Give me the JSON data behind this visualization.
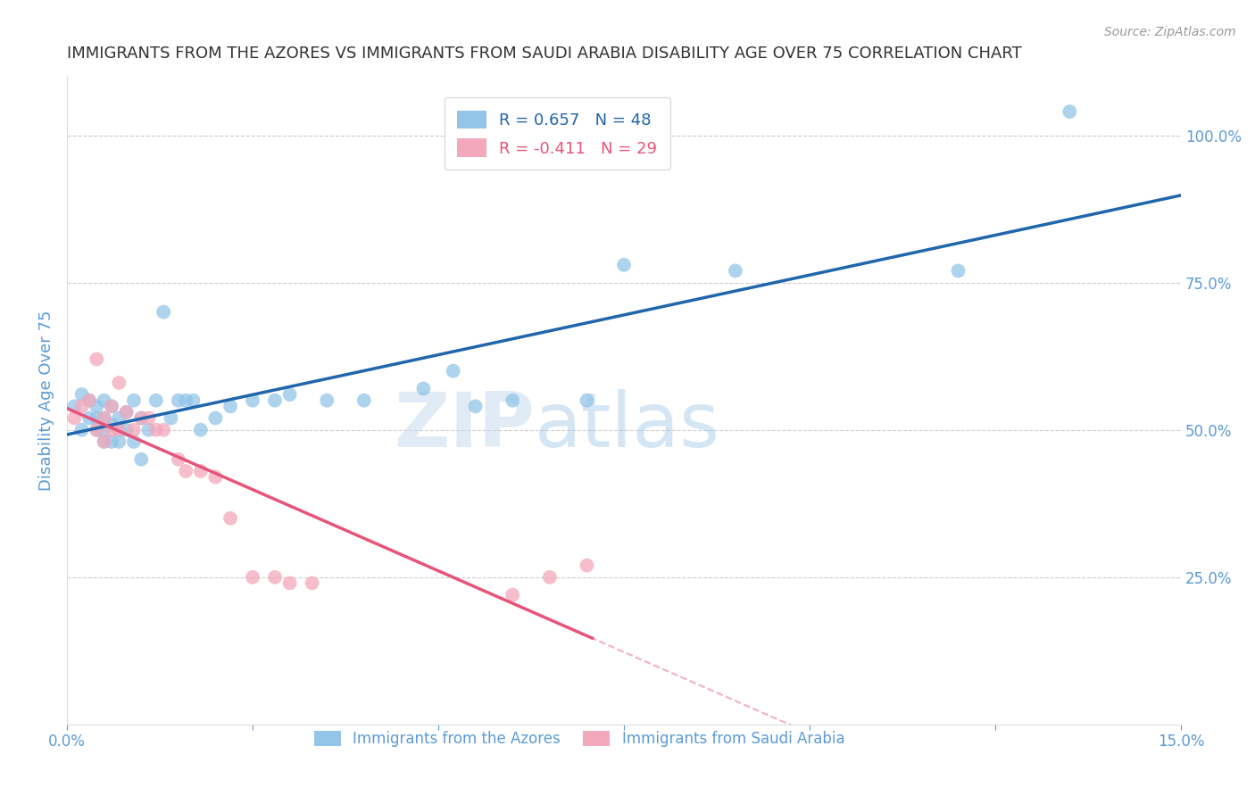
{
  "title": "IMMIGRANTS FROM THE AZORES VS IMMIGRANTS FROM SAUDI ARABIA DISABILITY AGE OVER 75 CORRELATION CHART",
  "source": "Source: ZipAtlas.com",
  "ylabel": "Disability Age Over 75",
  "xlim": [
    0.0,
    0.15
  ],
  "ylim": [
    0.0,
    1.1
  ],
  "xticks": [
    0.0,
    0.025,
    0.05,
    0.075,
    0.1,
    0.125,
    0.15
  ],
  "xtick_labels": [
    "0.0%",
    "",
    "",
    "",
    "",
    "",
    "15.0%"
  ],
  "yticks": [
    0.25,
    0.5,
    0.75,
    1.0
  ],
  "ytick_labels": [
    "25.0%",
    "50.0%",
    "75.0%",
    "100.0%"
  ],
  "r_azores": 0.657,
  "n_azores": 48,
  "r_saudi": -0.411,
  "n_saudi": 29,
  "color_azores": "#92C5E8",
  "color_saudi": "#F4A8BB",
  "line_color_azores": "#2166AC",
  "line_color_saudi": "#E8537A",
  "background_color": "#FFFFFF",
  "grid_color": "#CCCCCC",
  "title_color": "#333333",
  "axis_label_color": "#5B9BD5",
  "tick_color": "#5B9BD5",
  "azores_x": [
    0.001,
    0.002,
    0.002,
    0.003,
    0.003,
    0.004,
    0.004,
    0.004,
    0.005,
    0.005,
    0.005,
    0.005,
    0.006,
    0.006,
    0.006,
    0.007,
    0.007,
    0.007,
    0.008,
    0.008,
    0.009,
    0.009,
    0.01,
    0.01,
    0.011,
    0.012,
    0.013,
    0.014,
    0.015,
    0.016,
    0.017,
    0.018,
    0.02,
    0.022,
    0.025,
    0.028,
    0.03,
    0.035,
    0.04,
    0.048,
    0.052,
    0.055,
    0.06,
    0.07,
    0.075,
    0.09,
    0.12,
    0.135
  ],
  "azores_y": [
    0.54,
    0.56,
    0.5,
    0.52,
    0.55,
    0.5,
    0.52,
    0.54,
    0.48,
    0.5,
    0.52,
    0.55,
    0.48,
    0.51,
    0.54,
    0.5,
    0.52,
    0.48,
    0.5,
    0.53,
    0.48,
    0.55,
    0.52,
    0.45,
    0.5,
    0.55,
    0.7,
    0.52,
    0.55,
    0.55,
    0.55,
    0.5,
    0.52,
    0.54,
    0.55,
    0.55,
    0.56,
    0.55,
    0.55,
    0.57,
    0.6,
    0.54,
    0.55,
    0.55,
    0.78,
    0.77,
    0.77,
    1.04
  ],
  "saudi_x": [
    0.001,
    0.002,
    0.003,
    0.004,
    0.004,
    0.005,
    0.005,
    0.006,
    0.006,
    0.007,
    0.007,
    0.008,
    0.009,
    0.01,
    0.011,
    0.012,
    0.013,
    0.015,
    0.016,
    0.018,
    0.02,
    0.022,
    0.025,
    0.028,
    0.03,
    0.033,
    0.06,
    0.065,
    0.07
  ],
  "saudi_y": [
    0.52,
    0.54,
    0.55,
    0.62,
    0.5,
    0.52,
    0.48,
    0.54,
    0.5,
    0.58,
    0.5,
    0.53,
    0.5,
    0.52,
    0.52,
    0.5,
    0.5,
    0.45,
    0.43,
    0.43,
    0.42,
    0.35,
    0.25,
    0.25,
    0.24,
    0.24,
    0.22,
    0.25,
    0.27
  ],
  "watermark_zip": "ZIP",
  "watermark_atlas": "atlas",
  "legend_fontsize": 13,
  "title_fontsize": 13
}
